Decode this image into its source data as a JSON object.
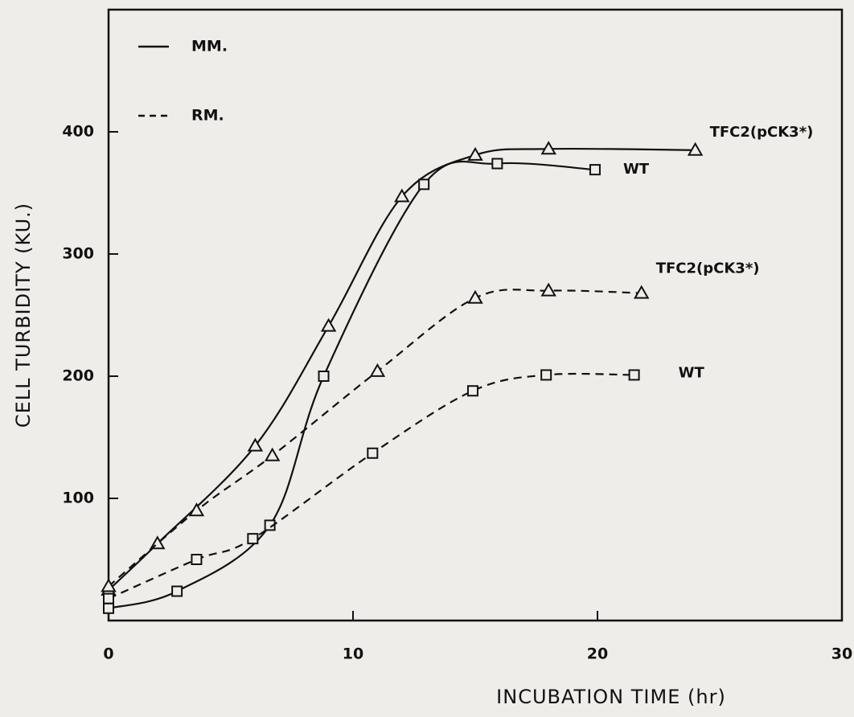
{
  "chart_data": {
    "type": "line",
    "xlabel": "INCUBATION TIME  (hr)",
    "ylabel": "CELL  TURBIDITY (KU.)",
    "xlim": [
      0,
      30
    ],
    "xticks": [
      0,
      10,
      20,
      30
    ],
    "ylim": [
      0,
      500
    ],
    "yticks": [
      100,
      200,
      300,
      400
    ],
    "legend": [
      {
        "label": "MM.",
        "style": "solid"
      },
      {
        "label": "RM.",
        "style": "dashed"
      }
    ],
    "series": [
      {
        "name": "TFC2(pCK3*)",
        "style": "solid",
        "marker": "triangle",
        "color": "#111111",
        "x": [
          0,
          2,
          6,
          9,
          12,
          15,
          18,
          24
        ],
        "values": [
          25,
          63,
          143,
          241,
          347,
          381,
          386,
          385
        ]
      },
      {
        "name": "WT",
        "style": "solid",
        "marker": "square",
        "color": "#111111",
        "x": [
          0,
          2.8,
          6.6,
          8.8,
          12.9,
          15.9,
          19.9
        ],
        "values": [
          10,
          24,
          78,
          200,
          357,
          374,
          369
        ]
      },
      {
        "name": "TFC2(pCK3*)",
        "style": "dashed",
        "marker": "triangle",
        "color": "#111111",
        "x": [
          0,
          3.6,
          6.7,
          11,
          15,
          18,
          21.8
        ],
        "values": [
          28,
          90,
          135,
          204,
          264,
          270,
          268
        ]
      },
      {
        "name": "WT",
        "style": "dashed",
        "marker": "square",
        "color": "#111111",
        "x": [
          0,
          3.6,
          5.9,
          10.8,
          14.9,
          17.9,
          21.5
        ],
        "values": [
          18,
          50,
          67,
          137,
          188,
          201,
          201
        ]
      }
    ]
  }
}
